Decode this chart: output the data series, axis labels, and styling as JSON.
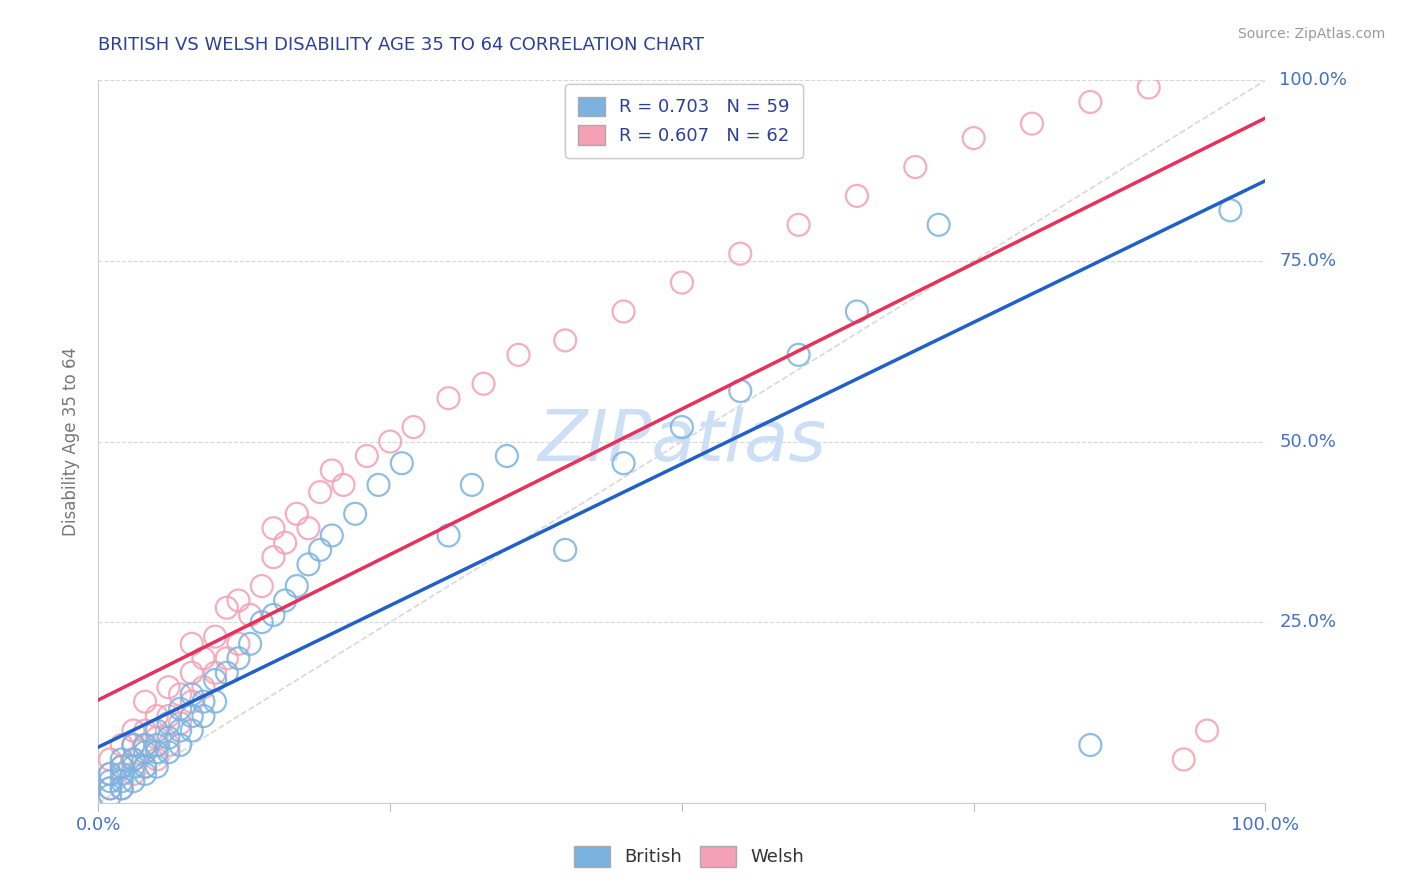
{
  "title": "BRITISH VS WELSH DISABILITY AGE 35 TO 64 CORRELATION CHART",
  "source": "Source: ZipAtlas.com",
  "ylabel": "Disability Age 35 to 64",
  "xlim": [
    0.0,
    1.0
  ],
  "ylim": [
    0.0,
    1.0
  ],
  "xticks": [
    0.0,
    0.25,
    0.5,
    0.75,
    1.0
  ],
  "xticklabels": [
    "0.0%",
    "",
    "",
    "",
    "100.0%"
  ],
  "ytick_positions": [
    0.0,
    0.25,
    0.5,
    0.75,
    1.0
  ],
  "ytick_labels_right": [
    "",
    "25.0%",
    "50.0%",
    "75.0%",
    "100.0%"
  ],
  "british_color": "#7ab3e0",
  "welsh_color": "#f4a0b5",
  "british_line_color": "#2060c8",
  "welsh_line_color": "#e8305a",
  "diagonal_color": "#c8c8c8",
  "grid_color": "#d8d8d8",
  "title_color": "#2d4099",
  "axis_label_color": "#4472c4",
  "watermark_color": "#ccdff5",
  "watermark_text": "ZIPatlas",
  "legend_label_british": "R = 0.703   N = 59",
  "legend_label_welsh": "R = 0.607   N = 62",
  "legend_bottom_british": "British",
  "legend_bottom_welsh": "Welsh",
  "brit_x": [
    0.01,
    0.01,
    0.01,
    0.01,
    0.02,
    0.02,
    0.02,
    0.02,
    0.02,
    0.03,
    0.03,
    0.03,
    0.03,
    0.04,
    0.04,
    0.04,
    0.04,
    0.05,
    0.05,
    0.05,
    0.05,
    0.06,
    0.06,
    0.06,
    0.07,
    0.07,
    0.07,
    0.08,
    0.08,
    0.08,
    0.09,
    0.09,
    0.1,
    0.1,
    0.11,
    0.12,
    0.13,
    0.14,
    0.15,
    0.16,
    0.17,
    0.18,
    0.19,
    0.2,
    0.22,
    0.24,
    0.26,
    0.3,
    0.32,
    0.35,
    0.4,
    0.45,
    0.5,
    0.55,
    0.6,
    0.65,
    0.72,
    0.85,
    0.97
  ],
  "brit_y": [
    0.01,
    0.02,
    0.03,
    0.04,
    0.02,
    0.03,
    0.04,
    0.05,
    0.06,
    0.03,
    0.05,
    0.06,
    0.08,
    0.04,
    0.05,
    0.07,
    0.08,
    0.05,
    0.07,
    0.08,
    0.1,
    0.07,
    0.09,
    0.11,
    0.08,
    0.1,
    0.13,
    0.1,
    0.12,
    0.15,
    0.12,
    0.14,
    0.14,
    0.17,
    0.18,
    0.2,
    0.22,
    0.25,
    0.26,
    0.28,
    0.3,
    0.33,
    0.35,
    0.37,
    0.4,
    0.44,
    0.47,
    0.37,
    0.44,
    0.48,
    0.35,
    0.47,
    0.52,
    0.57,
    0.62,
    0.68,
    0.8,
    0.08,
    0.82
  ],
  "welsh_x": [
    0.01,
    0.01,
    0.01,
    0.02,
    0.02,
    0.02,
    0.03,
    0.03,
    0.03,
    0.03,
    0.04,
    0.04,
    0.04,
    0.04,
    0.05,
    0.05,
    0.05,
    0.06,
    0.06,
    0.06,
    0.07,
    0.07,
    0.08,
    0.08,
    0.08,
    0.09,
    0.09,
    0.1,
    0.1,
    0.11,
    0.11,
    0.12,
    0.12,
    0.13,
    0.14,
    0.15,
    0.15,
    0.16,
    0.17,
    0.18,
    0.19,
    0.2,
    0.21,
    0.23,
    0.25,
    0.27,
    0.3,
    0.33,
    0.36,
    0.4,
    0.45,
    0.5,
    0.55,
    0.6,
    0.65,
    0.7,
    0.75,
    0.8,
    0.85,
    0.9,
    0.93,
    0.95
  ],
  "welsh_y": [
    0.02,
    0.04,
    0.06,
    0.02,
    0.05,
    0.08,
    0.04,
    0.06,
    0.08,
    0.1,
    0.05,
    0.08,
    0.1,
    0.14,
    0.06,
    0.09,
    0.12,
    0.08,
    0.12,
    0.16,
    0.11,
    0.15,
    0.14,
    0.18,
    0.22,
    0.16,
    0.2,
    0.18,
    0.23,
    0.2,
    0.27,
    0.22,
    0.28,
    0.26,
    0.3,
    0.34,
    0.38,
    0.36,
    0.4,
    0.38,
    0.43,
    0.46,
    0.44,
    0.48,
    0.5,
    0.52,
    0.56,
    0.58,
    0.62,
    0.64,
    0.68,
    0.72,
    0.76,
    0.8,
    0.84,
    0.88,
    0.92,
    0.94,
    0.97,
    0.99,
    0.06,
    0.1
  ]
}
